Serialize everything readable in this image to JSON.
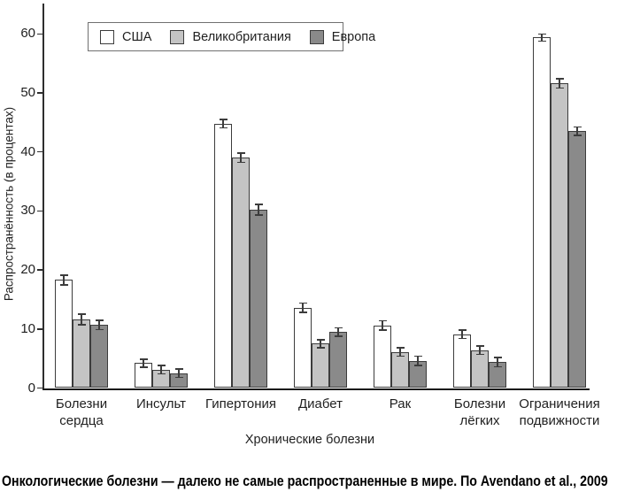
{
  "figure": {
    "caption": "Онкологические болезни — далеко не самые распространенные в мире. По Avendano et al., 2009"
  },
  "chart_data": {
    "type": "bar",
    "title": "",
    "xlabel": "Хронические болезни",
    "ylabel": "Распространённость (в процентах)",
    "ylim": [
      0,
      65
    ],
    "yticks": [
      0,
      10,
      20,
      30,
      40,
      50,
      60
    ],
    "grid": false,
    "legend_position": "top-left",
    "error_bars": true,
    "categories": [
      "Болезни сердца",
      "Инсульт",
      "Гипертония",
      "Диабет",
      "Рак",
      "Болезни лёгких",
      "Ограничения подвижности"
    ],
    "series": [
      {
        "name": "США",
        "color": "#ffffff",
        "values": [
          18.3,
          4.2,
          44.8,
          13.6,
          10.6,
          9.1,
          59.4
        ],
        "errors": [
          0.8,
          0.7,
          0.7,
          0.8,
          0.8,
          0.7,
          0.6
        ]
      },
      {
        "name": "Великобритания",
        "color": "#c4c4c4",
        "values": [
          11.6,
          3.1,
          39.0,
          7.5,
          6.1,
          6.4,
          51.6
        ],
        "errors": [
          0.9,
          0.7,
          0.8,
          0.7,
          0.7,
          0.7,
          0.8
        ]
      },
      {
        "name": "Европа",
        "color": "#8a8a8a",
        "values": [
          10.7,
          2.5,
          30.2,
          9.5,
          4.6,
          4.4,
          43.5
        ],
        "errors": [
          0.8,
          0.7,
          0.9,
          0.7,
          0.8,
          0.8,
          0.7
        ]
      }
    ]
  }
}
